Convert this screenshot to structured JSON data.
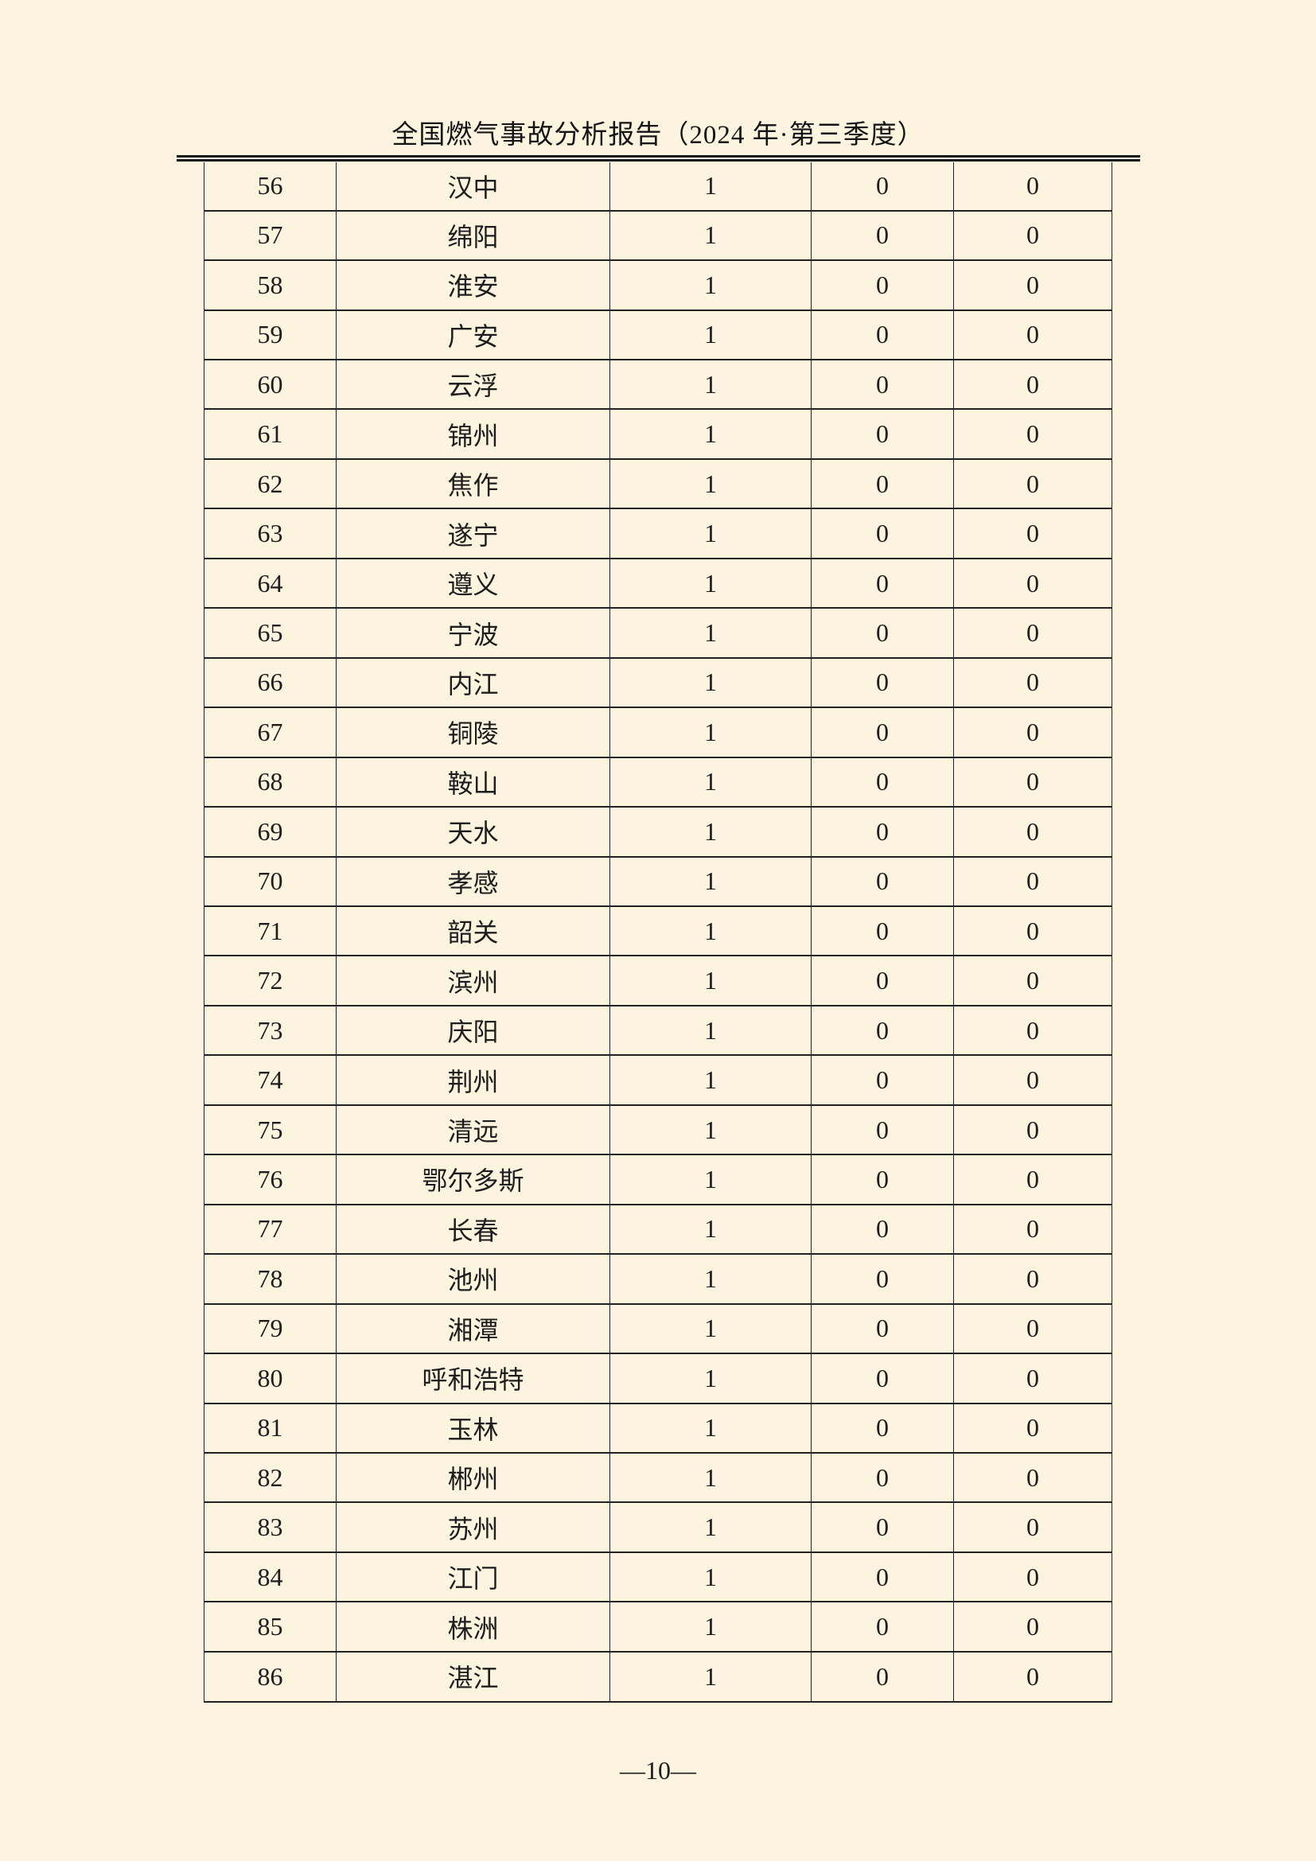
{
  "page": {
    "header_title": "全国燃气事故分析报告（2024 年·第三季度）",
    "page_number": "—10—"
  },
  "colors": {
    "background": "#fdf4e0",
    "text": "#1d1d1d",
    "border": "#222222"
  },
  "table": {
    "rows": [
      [
        "56",
        "汉中",
        "1",
        "0",
        "0"
      ],
      [
        "57",
        "绵阳",
        "1",
        "0",
        "0"
      ],
      [
        "58",
        "淮安",
        "1",
        "0",
        "0"
      ],
      [
        "59",
        "广安",
        "1",
        "0",
        "0"
      ],
      [
        "60",
        "云浮",
        "1",
        "0",
        "0"
      ],
      [
        "61",
        "锦州",
        "1",
        "0",
        "0"
      ],
      [
        "62",
        "焦作",
        "1",
        "0",
        "0"
      ],
      [
        "63",
        "遂宁",
        "1",
        "0",
        "0"
      ],
      [
        "64",
        "遵义",
        "1",
        "0",
        "0"
      ],
      [
        "65",
        "宁波",
        "1",
        "0",
        "0"
      ],
      [
        "66",
        "内江",
        "1",
        "0",
        "0"
      ],
      [
        "67",
        "铜陵",
        "1",
        "0",
        "0"
      ],
      [
        "68",
        "鞍山",
        "1",
        "0",
        "0"
      ],
      [
        "69",
        "天水",
        "1",
        "0",
        "0"
      ],
      [
        "70",
        "孝感",
        "1",
        "0",
        "0"
      ],
      [
        "71",
        "韶关",
        "1",
        "0",
        "0"
      ],
      [
        "72",
        "滨州",
        "1",
        "0",
        "0"
      ],
      [
        "73",
        "庆阳",
        "1",
        "0",
        "0"
      ],
      [
        "74",
        "荆州",
        "1",
        "0",
        "0"
      ],
      [
        "75",
        "清远",
        "1",
        "0",
        "0"
      ],
      [
        "76",
        "鄂尔多斯",
        "1",
        "0",
        "0"
      ],
      [
        "77",
        "长春",
        "1",
        "0",
        "0"
      ],
      [
        "78",
        "池州",
        "1",
        "0",
        "0"
      ],
      [
        "79",
        "湘潭",
        "1",
        "0",
        "0"
      ],
      [
        "80",
        "呼和浩特",
        "1",
        "0",
        "0"
      ],
      [
        "81",
        "玉林",
        "1",
        "0",
        "0"
      ],
      [
        "82",
        "郴州",
        "1",
        "0",
        "0"
      ],
      [
        "83",
        "苏州",
        "1",
        "0",
        "0"
      ],
      [
        "84",
        "江门",
        "1",
        "0",
        "0"
      ],
      [
        "85",
        "株洲",
        "1",
        "0",
        "0"
      ],
      [
        "86",
        "湛江",
        "1",
        "0",
        "0"
      ]
    ]
  }
}
